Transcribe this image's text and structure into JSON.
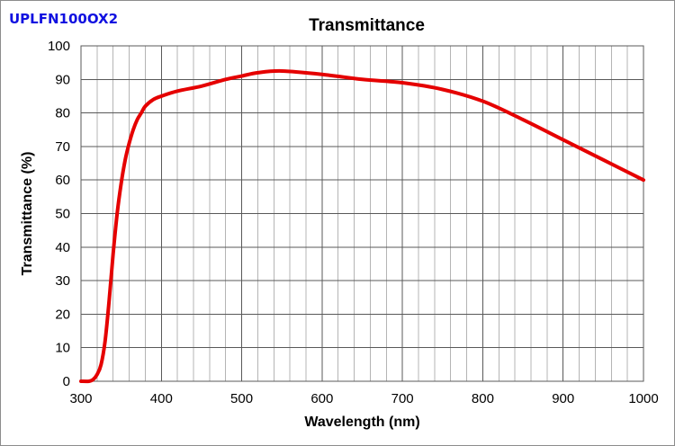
{
  "product_label": "UPLFN100OX2",
  "colors": {
    "curve": "#e50000",
    "label": "#1010e0",
    "grid": "#b4b4b4",
    "major_grid": "#595959"
  },
  "chart_data": {
    "type": "line",
    "title": "Transmittance",
    "xlabel": "Wavelength (nm)",
    "ylabel": "Transmittance (%)",
    "xlim": [
      300,
      1000
    ],
    "ylim": [
      0,
      100
    ],
    "xticks": [
      300,
      400,
      500,
      600,
      700,
      800,
      900,
      1000
    ],
    "yticks": [
      0,
      10,
      20,
      30,
      40,
      50,
      60,
      70,
      80,
      90,
      100
    ],
    "x_minor_step": 20,
    "y_minor_step": 10,
    "grid": true,
    "series": [
      {
        "name": "UPLFN100OX2",
        "x": [
          300,
          310,
          315,
          320,
          325,
          330,
          335,
          340,
          345,
          350,
          355,
          360,
          365,
          370,
          375,
          380,
          390,
          400,
          420,
          450,
          480,
          500,
          520,
          550,
          600,
          650,
          700,
          750,
          800,
          850,
          900,
          950,
          1000
        ],
        "y": [
          0,
          0,
          0.5,
          2,
          5,
          12,
          24,
          38,
          50,
          59,
          66,
          71,
          75,
          78,
          80,
          82,
          84,
          85,
          86.5,
          88,
          90,
          91,
          92,
          92.5,
          91.5,
          90,
          89,
          87,
          83.5,
          78,
          72,
          66,
          60
        ]
      }
    ]
  }
}
